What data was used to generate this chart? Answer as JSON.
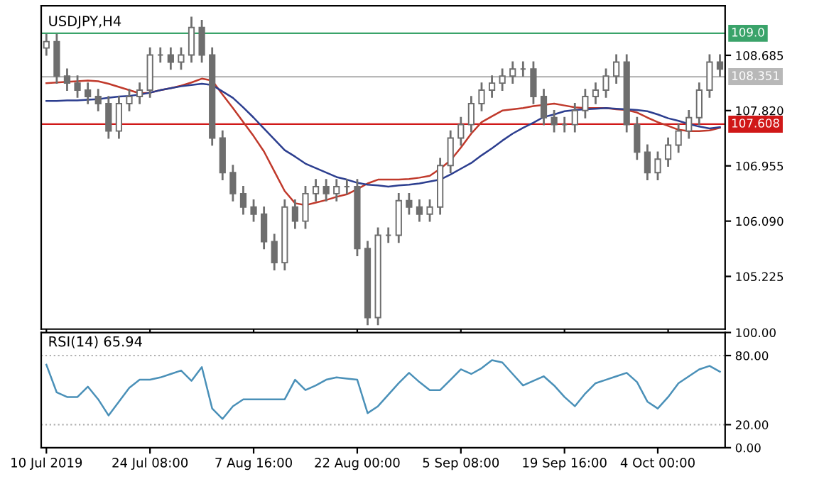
{
  "chart_data": [
    {
      "type": "candlestick",
      "title": "USDJPY,H4",
      "color": "#6e6e6e",
      "tick_labels": "y",
      "grid": false,
      "legend": false,
      "categories": [
        null,
        null,
        null,
        null,
        null,
        null,
        null,
        null,
        null,
        null,
        null,
        null,
        null,
        null,
        null,
        null,
        null,
        null,
        null,
        null,
        null,
        null,
        null,
        null,
        null,
        null,
        null,
        null,
        null,
        null,
        null,
        null,
        null,
        null,
        null,
        null,
        null,
        null,
        null,
        null,
        null,
        null,
        null,
        null,
        null,
        null,
        null,
        null,
        null,
        null,
        null,
        null,
        null,
        null,
        null,
        null,
        null,
        null,
        null,
        null,
        null,
        null,
        null,
        null,
        null,
        null
      ],
      "ohlc": [
        [
          108.8,
          109.02,
          108.68,
          108.9
        ],
        [
          108.9,
          109.02,
          108.24,
          108.36
        ],
        [
          108.36,
          108.48,
          108.13,
          108.25
        ],
        [
          108.25,
          108.37,
          108.02,
          108.14
        ],
        [
          108.14,
          108.26,
          107.92,
          108.04
        ],
        [
          108.04,
          108.16,
          107.81,
          107.93
        ],
        [
          107.93,
          108.05,
          107.38,
          107.5
        ],
        [
          107.5,
          108.05,
          107.38,
          107.93
        ],
        [
          107.93,
          108.16,
          107.81,
          108.04
        ],
        [
          108.04,
          108.26,
          107.92,
          108.14
        ],
        [
          108.14,
          108.81,
          108.02,
          108.69
        ],
        [
          108.69,
          108.81,
          108.57,
          108.69
        ],
        [
          108.69,
          108.81,
          108.46,
          108.58
        ],
        [
          108.58,
          108.81,
          108.46,
          108.69
        ],
        [
          108.69,
          109.29,
          108.57,
          109.12
        ],
        [
          109.12,
          109.24,
          108.57,
          108.69
        ],
        [
          108.69,
          108.81,
          107.27,
          107.39
        ],
        [
          107.39,
          107.51,
          106.73,
          106.85
        ],
        [
          106.85,
          106.97,
          106.4,
          106.52
        ],
        [
          106.52,
          106.64,
          106.19,
          106.31
        ],
        [
          106.31,
          106.43,
          106.08,
          106.2
        ],
        [
          106.2,
          106.32,
          105.65,
          105.77
        ],
        [
          105.77,
          105.89,
          105.32,
          105.44
        ],
        [
          105.44,
          106.43,
          105.32,
          106.31
        ],
        [
          106.31,
          106.43,
          105.97,
          106.09
        ],
        [
          106.09,
          106.64,
          105.97,
          106.52
        ],
        [
          106.52,
          106.75,
          106.4,
          106.63
        ],
        [
          106.63,
          106.75,
          106.4,
          106.52
        ],
        [
          106.52,
          106.75,
          106.4,
          106.63
        ],
        [
          106.63,
          106.75,
          106.51,
          106.63
        ],
        [
          106.63,
          106.75,
          105.54,
          105.66
        ],
        [
          105.66,
          105.78,
          104.46,
          104.58
        ],
        [
          104.58,
          105.99,
          104.46,
          105.87
        ],
        [
          105.87,
          105.99,
          105.75,
          105.87
        ],
        [
          105.87,
          106.53,
          105.75,
          106.41
        ],
        [
          106.41,
          106.53,
          106.19,
          106.31
        ],
        [
          106.31,
          106.43,
          106.08,
          106.2
        ],
        [
          106.2,
          106.43,
          106.08,
          106.31
        ],
        [
          106.31,
          107.08,
          106.19,
          106.96
        ],
        [
          106.96,
          107.51,
          106.84,
          107.39
        ],
        [
          107.39,
          107.72,
          107.27,
          107.6
        ],
        [
          107.6,
          108.05,
          107.48,
          107.93
        ],
        [
          107.93,
          108.26,
          107.81,
          108.14
        ],
        [
          108.14,
          108.37,
          108.02,
          108.25
        ],
        [
          108.25,
          108.48,
          108.13,
          108.36
        ],
        [
          108.36,
          108.59,
          108.24,
          108.47
        ],
        [
          108.47,
          108.59,
          108.35,
          108.47
        ],
        [
          108.47,
          108.59,
          107.92,
          108.04
        ],
        [
          108.04,
          108.16,
          107.59,
          107.71
        ],
        [
          107.71,
          107.83,
          107.48,
          107.6
        ],
        [
          107.6,
          107.72,
          107.48,
          107.6
        ],
        [
          107.6,
          107.94,
          107.48,
          107.82
        ],
        [
          107.82,
          108.16,
          107.7,
          108.04
        ],
        [
          108.04,
          108.26,
          107.92,
          108.14
        ],
        [
          108.14,
          108.48,
          108.02,
          108.36
        ],
        [
          108.36,
          108.7,
          108.24,
          108.58
        ],
        [
          108.58,
          108.7,
          107.48,
          107.6
        ],
        [
          107.6,
          107.72,
          107.05,
          107.17
        ],
        [
          107.17,
          107.29,
          106.73,
          106.85
        ],
        [
          106.85,
          107.18,
          106.73,
          107.06
        ],
        [
          107.06,
          107.4,
          106.94,
          107.28
        ],
        [
          107.28,
          107.62,
          107.16,
          107.5
        ],
        [
          107.5,
          107.83,
          107.38,
          107.71
        ],
        [
          107.71,
          108.26,
          107.59,
          108.14
        ],
        [
          108.14,
          108.7,
          108.02,
          108.58
        ],
        [
          108.58,
          108.7,
          108.35,
          108.47
        ]
      ],
      "series": [
        {
          "type": "line",
          "color": "#c0392b",
          "values": [
            108.25,
            108.26,
            108.27,
            108.28,
            108.29,
            108.28,
            108.24,
            108.19,
            108.14,
            108.09,
            108.1,
            108.14,
            108.17,
            108.21,
            108.26,
            108.32,
            108.29,
            108.07,
            107.86,
            107.64,
            107.42,
            107.18,
            106.87,
            106.56,
            106.37,
            106.34,
            106.38,
            106.42,
            106.47,
            106.51,
            106.59,
            106.68,
            106.74,
            106.74,
            106.74,
            106.75,
            106.77,
            106.8,
            106.91,
            107.04,
            107.24,
            107.46,
            107.64,
            107.73,
            107.82,
            107.84,
            107.86,
            107.89,
            107.91,
            107.93,
            107.9,
            107.87,
            107.86,
            107.86,
            107.86,
            107.84,
            107.83,
            107.79,
            107.71,
            107.64,
            107.58,
            107.52,
            107.5,
            107.5,
            107.51,
            107.55
          ]
        },
        {
          "type": "line",
          "color": "#2c3e8f",
          "values": [
            107.97,
            107.97,
            107.98,
            107.98,
            107.99,
            108.0,
            108.02,
            108.04,
            108.05,
            108.07,
            108.1,
            108.14,
            108.17,
            108.2,
            108.22,
            108.24,
            108.22,
            108.12,
            108.02,
            107.87,
            107.71,
            107.54,
            107.37,
            107.2,
            107.1,
            106.99,
            106.92,
            106.85,
            106.78,
            106.74,
            106.69,
            106.66,
            106.65,
            106.63,
            106.65,
            106.66,
            106.68,
            106.71,
            106.74,
            106.82,
            106.91,
            107.0,
            107.12,
            107.23,
            107.35,
            107.46,
            107.55,
            107.63,
            107.72,
            107.76,
            107.81,
            107.83,
            107.84,
            107.85,
            107.86,
            107.85,
            107.84,
            107.83,
            107.81,
            107.76,
            107.7,
            107.66,
            107.61,
            107.57,
            107.54,
            107.56
          ]
        }
      ],
      "ref_lines": [
        {
          "axis": "y",
          "value": 109.03,
          "label": "109.0",
          "color": "#3aa36a"
        },
        {
          "axis": "y",
          "value": 108.351,
          "label": "108.351",
          "color": "#b8b8b8"
        },
        {
          "axis": "y",
          "value": 107.608,
          "label": "107.608",
          "color": "#d01818"
        }
      ],
      "ylim": [
        104.4,
        109.46
      ],
      "yticks": [
        105.225,
        {
          "value": 106.09,
          "label": "106.090"
        },
        106.955,
        {
          "value": 107.82,
          "label": "107.820"
        },
        108.685
      ]
    },
    {
      "type": "line",
      "title": "RSI(14) 65.94",
      "grid": false,
      "legend": false,
      "categories": [
        "10 Jul 2019",
        null,
        null,
        null,
        null,
        null,
        null,
        null,
        null,
        null,
        "24 Jul 08:00",
        null,
        null,
        null,
        null,
        null,
        null,
        null,
        null,
        null,
        "7 Aug 16:00",
        null,
        null,
        null,
        null,
        null,
        null,
        null,
        null,
        null,
        "22 Aug 00:00",
        null,
        null,
        null,
        null,
        null,
        null,
        null,
        null,
        null,
        "5 Sep 08:00",
        null,
        null,
        null,
        null,
        null,
        null,
        null,
        null,
        null,
        "19 Sep 16:00",
        null,
        null,
        null,
        null,
        null,
        null,
        null,
        null,
        "4 Oct 00:00",
        null,
        null,
        null,
        null,
        null,
        null
      ],
      "series": [
        {
          "color": "#4a90b8",
          "values": [
            72,
            48,
            44,
            44,
            53,
            42,
            28,
            40,
            52,
            59,
            59,
            61,
            64,
            67,
            58,
            70,
            34,
            25,
            36,
            42,
            42,
            42,
            42,
            42,
            59,
            50,
            54,
            59,
            61,
            60,
            59,
            30,
            36,
            46,
            56,
            65,
            57,
            50,
            50,
            59,
            68,
            64,
            69,
            76,
            74,
            64,
            54,
            58,
            62,
            54,
            44,
            36,
            47,
            56,
            59,
            62,
            65,
            57,
            40,
            34,
            44,
            56,
            62,
            68,
            71,
            66
          ]
        }
      ],
      "ref_lines": [
        {
          "axis": "y",
          "value": 80,
          "line_style": "dotted",
          "color": "#b0b0b0"
        },
        {
          "axis": "y",
          "value": 20,
          "line_style": "dotted",
          "color": "#b0b0b0"
        }
      ],
      "ylim": [
        0,
        100
      ],
      "yticks": [
        {
          "value": 0,
          "label": "0.00"
        },
        {
          "value": 20,
          "label": "20.00"
        },
        {
          "value": 80,
          "label": "80.00"
        },
        {
          "value": 100,
          "label": "100.00"
        }
      ]
    }
  ]
}
